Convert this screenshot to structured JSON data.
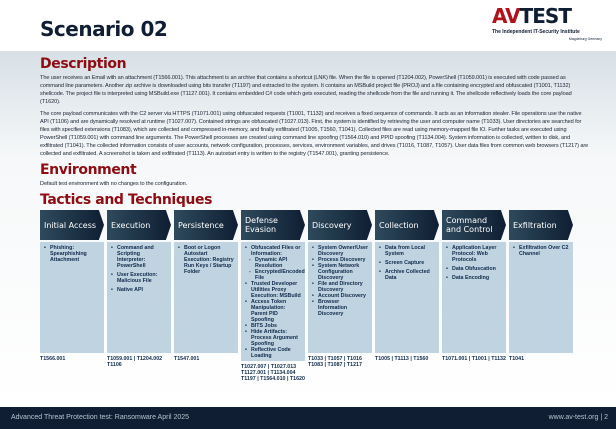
{
  "header": {
    "title": "Scenario 02",
    "logo": {
      "text_av": "AV",
      "text_test": "TEST",
      "tagline": "The Independent IT-Security Institute",
      "location": "Magdeburg Germany"
    }
  },
  "description": {
    "heading": "Description",
    "p1": "The user receives an Email with an attachment (T1566.001). This attachment is an archive that contains a shortcut (LNK) file. When the file is opened (T1204.002), PowerShell (T1059.001) is executed with code passed as command line parameters. Another zip archive is downloaded using bits transfer (T1197) and extracted to the system. It contains an MSBuild project file (PROJ) and a file containing encrypted and obfuscated (T1001, T1132) shellcode. The project file is interpreted using MSBuild.exe (T1127.001). It contains embedded C# code which gets executed, reading the shellcode from the file and running it. The shellcode reflectively loads the core payload (T1620).",
    "p2": "The core payload communicates with the C2 server via HTTPS (T1071.001) using obfuscated requests (T1001, T1132) and receives a fixed sequence of commands. It acts as an information stealer. File operations use the native API (T1106) and are dynamically resolved at runtime (T1027.007). Contained strings are obfuscated (T1027.013). First, the system is identified by retrieving the user and computer name (T1033). User directories are searched for files with specified extensions (T1083), which are collected and compressed in-memory, and finally exfiltrated (T1005, T1560, T1041). Collected files are read using memory-mapped file IO. Further tasks are executed using PowerShell (T1059.001) with command line arguments. The PowerShell processes are created using command line spoofing (T1564.010) and PPID spoofing (T1134.004). System information is collected, written to disk, and exfiltrated (T1041). The collected information consists of user accounts, network configuration, processes, services, environment variables, and drives (T1016, T1087, T1057). User data files from common web browsers (T1217) are collected and exfiltrated. A screenshot is taken and exfiltrated (T1113). An autostart entry is written to the registry (T1547.001), granting persistence."
  },
  "environment": {
    "heading": "Environment",
    "text": "Default test environment with no changes to the configuration."
  },
  "tactics": {
    "heading": "Tactics and Techniques",
    "columns": [
      {
        "name": "Initial Access",
        "items": [
          {
            "t": "Phishing: Spearphishing Attachment"
          }
        ],
        "ids": "T1566.001"
      },
      {
        "name": "Execution",
        "items": [
          {
            "t": "Command and Scripting Interpreter: PowerShell"
          },
          {
            "t": "User Execution: Malicious File"
          },
          {
            "t": "Native API"
          }
        ],
        "ids": "T1059.001 | T1204.002 T1106"
      },
      {
        "name": "Persistence",
        "items": [
          {
            "t": "Boot or Logon Autostart Execution: Registry Run Keys / Startup Folder"
          }
        ],
        "ids": "T1547.001"
      },
      {
        "name": "Defense Evasion",
        "items": [
          {
            "t": "Obfuscated Files or Information:"
          },
          {
            "t": "Dynamic API Resolution",
            "sub": true
          },
          {
            "t": "Encrypted/Encoded File",
            "sub": true
          },
          {
            "t": "Trusted Developer Utilities Proxy Execution: MSBuild"
          },
          {
            "t": "Access Token Manipulation: Parent PID Spoofing"
          },
          {
            "t": "BITS Jobs"
          },
          {
            "t": "Hide Artifacts: Process Argument Spoofing"
          },
          {
            "t": "Reflective Code Loading"
          }
        ],
        "ids": "T1027.007 | T1027.013 T1127.001 | T1134.004 T1197 | T1564.010 | T1620"
      },
      {
        "name": "Discovery",
        "items": [
          {
            "t": "System Owner/User Discovery"
          },
          {
            "t": "Process Discovery"
          },
          {
            "t": "System Network Configuration Discovery"
          },
          {
            "t": "File and Directory Discovery"
          },
          {
            "t": "Account Discovery"
          },
          {
            "t": "Browser Information Discovery"
          }
        ],
        "ids": "T1033 | T1057 | T1016 T1083 | T1087 | T1217"
      },
      {
        "name": "Collection",
        "items": [
          {
            "t": "Data from Local System"
          },
          {
            "t": "Screen Capture"
          },
          {
            "t": "Archive Collected Data"
          }
        ],
        "ids": "T1005 | T1113 | T1560"
      },
      {
        "name": "Command and Control",
        "items": [
          {
            "t": "Application Layer Protocol: Web Protocols"
          },
          {
            "t": "Data Obfuscation"
          },
          {
            "t": "Data Encoding"
          }
        ],
        "ids": "T1071.001 | T1001 | T1132"
      },
      {
        "name": "Exfiltration",
        "items": [
          {
            "t": "Exfiltration Over C2 Channel"
          }
        ],
        "ids": "T1041"
      }
    ]
  },
  "footer": {
    "left": "Advanced Threat Protection test: Ransomware April 2025",
    "right": "www.av-test.org | 2"
  },
  "colors": {
    "accent": "#8e0c12",
    "navy": "#0f1e33",
    "cell": "#bfd3e1"
  }
}
